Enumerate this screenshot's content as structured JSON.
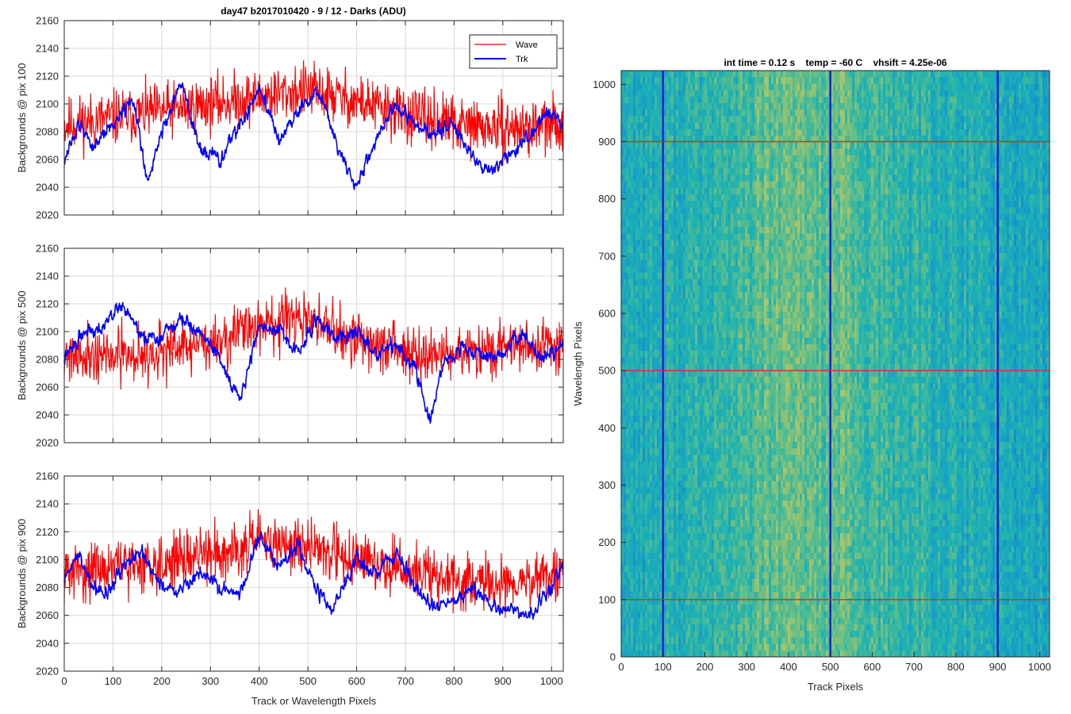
{
  "figure_title": "day47 b2017010420 - 9 / 12 - Darks (ADU)",
  "colors": {
    "wave": "#ff0000",
    "trk": "#0000ff",
    "grid": "#d9d9d9",
    "axis": "#262626"
  },
  "chart_data": [
    {
      "type": "line",
      "title": "day47 b2017010420 - 9 / 12 - Darks (ADU)",
      "xlabel": "",
      "ylabel": "Backgrounds @ pix 100",
      "xlim": [
        0,
        1024
      ],
      "ylim": [
        2020,
        2160
      ],
      "xticks": [
        0,
        100,
        200,
        300,
        400,
        500,
        600,
        700,
        800,
        900,
        1000
      ],
      "yticks": [
        2020,
        2040,
        2060,
        2080,
        2100,
        2120,
        2140,
        2160
      ],
      "show_xtick_labels": false,
      "grid": true,
      "legend": {
        "position": "top-right",
        "entries": [
          "Wave",
          "Trk"
        ]
      },
      "series": [
        {
          "name": "Wave",
          "color": "#ff0000",
          "noise": 14,
          "seed": 11,
          "x": [
            0,
            100,
            200,
            300,
            400,
            500,
            600,
            700,
            800,
            900,
            1024
          ],
          "values": [
            2085,
            2090,
            2095,
            2100,
            2105,
            2110,
            2102,
            2092,
            2085,
            2082,
            2085
          ]
        },
        {
          "name": "Trk",
          "color": "#0000ff",
          "noise": 4,
          "seed": 12,
          "x": [
            0,
            30,
            60,
            100,
            140,
            170,
            200,
            240,
            280,
            320,
            360,
            400,
            440,
            480,
            520,
            560,
            600,
            640,
            680,
            720,
            760,
            800,
            840,
            870,
            900,
            950,
            1000,
            1024
          ],
          "values": [
            2060,
            2085,
            2070,
            2085,
            2105,
            2045,
            2080,
            2115,
            2065,
            2060,
            2085,
            2110,
            2075,
            2095,
            2110,
            2070,
            2040,
            2075,
            2100,
            2085,
            2080,
            2085,
            2060,
            2050,
            2060,
            2075,
            2095,
            2085
          ]
        }
      ]
    },
    {
      "type": "line",
      "xlabel": "",
      "ylabel": "Backgrounds @ pix 500",
      "xlim": [
        0,
        1024
      ],
      "ylim": [
        2020,
        2160
      ],
      "xticks": [
        0,
        100,
        200,
        300,
        400,
        500,
        600,
        700,
        800,
        900,
        1000
      ],
      "yticks": [
        2020,
        2040,
        2060,
        2080,
        2100,
        2120,
        2140,
        2160
      ],
      "show_xtick_labels": false,
      "grid": true,
      "series": [
        {
          "name": "Wave",
          "color": "#ff0000",
          "noise": 14,
          "seed": 21,
          "x": [
            0,
            100,
            200,
            300,
            400,
            500,
            600,
            700,
            800,
            900,
            1024
          ],
          "values": [
            2085,
            2082,
            2085,
            2092,
            2105,
            2108,
            2095,
            2085,
            2082,
            2088,
            2090
          ]
        },
        {
          "name": "Trk",
          "color": "#0000ff",
          "noise": 4,
          "seed": 22,
          "x": [
            0,
            40,
            80,
            120,
            160,
            200,
            240,
            280,
            320,
            360,
            400,
            440,
            480,
            520,
            560,
            600,
            640,
            680,
            720,
            750,
            780,
            820,
            860,
            900,
            940,
            980,
            1024
          ],
          "values": [
            2080,
            2100,
            2105,
            2120,
            2095,
            2095,
            2110,
            2100,
            2080,
            2050,
            2105,
            2100,
            2085,
            2110,
            2095,
            2100,
            2085,
            2090,
            2075,
            2035,
            2080,
            2090,
            2080,
            2085,
            2100,
            2080,
            2090
          ]
        }
      ]
    },
    {
      "type": "line",
      "xlabel": "Track or Wavelength Pixels",
      "ylabel": "Backgrounds @ pix 900",
      "xlim": [
        0,
        1024
      ],
      "ylim": [
        2020,
        2160
      ],
      "xticks": [
        0,
        100,
        200,
        300,
        400,
        500,
        600,
        700,
        800,
        900,
        1000
      ],
      "yticks": [
        2020,
        2040,
        2060,
        2080,
        2100,
        2120,
        2140,
        2160
      ],
      "show_xtick_labels": true,
      "grid": true,
      "series": [
        {
          "name": "Wave",
          "color": "#ff0000",
          "noise": 14,
          "seed": 31,
          "x": [
            0,
            100,
            200,
            300,
            400,
            500,
            600,
            700,
            800,
            900,
            1024
          ],
          "values": [
            2090,
            2095,
            2098,
            2105,
            2112,
            2110,
            2100,
            2092,
            2085,
            2082,
            2090
          ]
        },
        {
          "name": "Trk",
          "color": "#0000ff",
          "noise": 4,
          "seed": 32,
          "x": [
            0,
            30,
            60,
            90,
            120,
            160,
            200,
            240,
            280,
            320,
            360,
            400,
            440,
            480,
            520,
            550,
            600,
            640,
            680,
            720,
            760,
            800,
            840,
            880,
            920,
            960,
            1000,
            1024
          ],
          "values": [
            2085,
            2105,
            2080,
            2075,
            2095,
            2105,
            2080,
            2080,
            2090,
            2080,
            2075,
            2115,
            2095,
            2110,
            2075,
            2065,
            2100,
            2090,
            2105,
            2080,
            2065,
            2070,
            2080,
            2065,
            2065,
            2060,
            2080,
            2095
          ]
        }
      ]
    },
    {
      "type": "heatmap",
      "title": "int time = 0.12 s    temp = -60 C    vhsift = 4.25e-06",
      "xlabel": "Track Pixels",
      "ylabel": "Wavelength Pixels",
      "xlim": [
        0,
        1024
      ],
      "ylim": [
        0,
        1024
      ],
      "xticks": [
        0,
        100,
        200,
        300,
        400,
        500,
        600,
        700,
        800,
        900,
        1000
      ],
      "yticks": [
        0,
        100,
        200,
        300,
        400,
        500,
        600,
        700,
        800,
        900,
        1000
      ],
      "grid": false,
      "colormap": [
        "#1a82c8",
        "#169fc8",
        "#1fb3b0",
        "#5cbd8c",
        "#a8c46a",
        "#d0c254"
      ],
      "column_profile": {
        "x": [
          0,
          100,
          200,
          300,
          350,
          400,
          450,
          500,
          530,
          560,
          600,
          700,
          800,
          900,
          1024
        ],
        "level": [
          0.34,
          0.36,
          0.4,
          0.5,
          0.58,
          0.62,
          0.6,
          0.58,
          0.6,
          0.52,
          0.48,
          0.42,
          0.36,
          0.32,
          0.3
        ]
      },
      "horizontal_lines": {
        "color": "#e8232a",
        "y": [
          100,
          500,
          900
        ]
      },
      "vertical_lines": {
        "color": "#1010d0",
        "x": [
          100,
          500,
          900
        ]
      }
    }
  ]
}
